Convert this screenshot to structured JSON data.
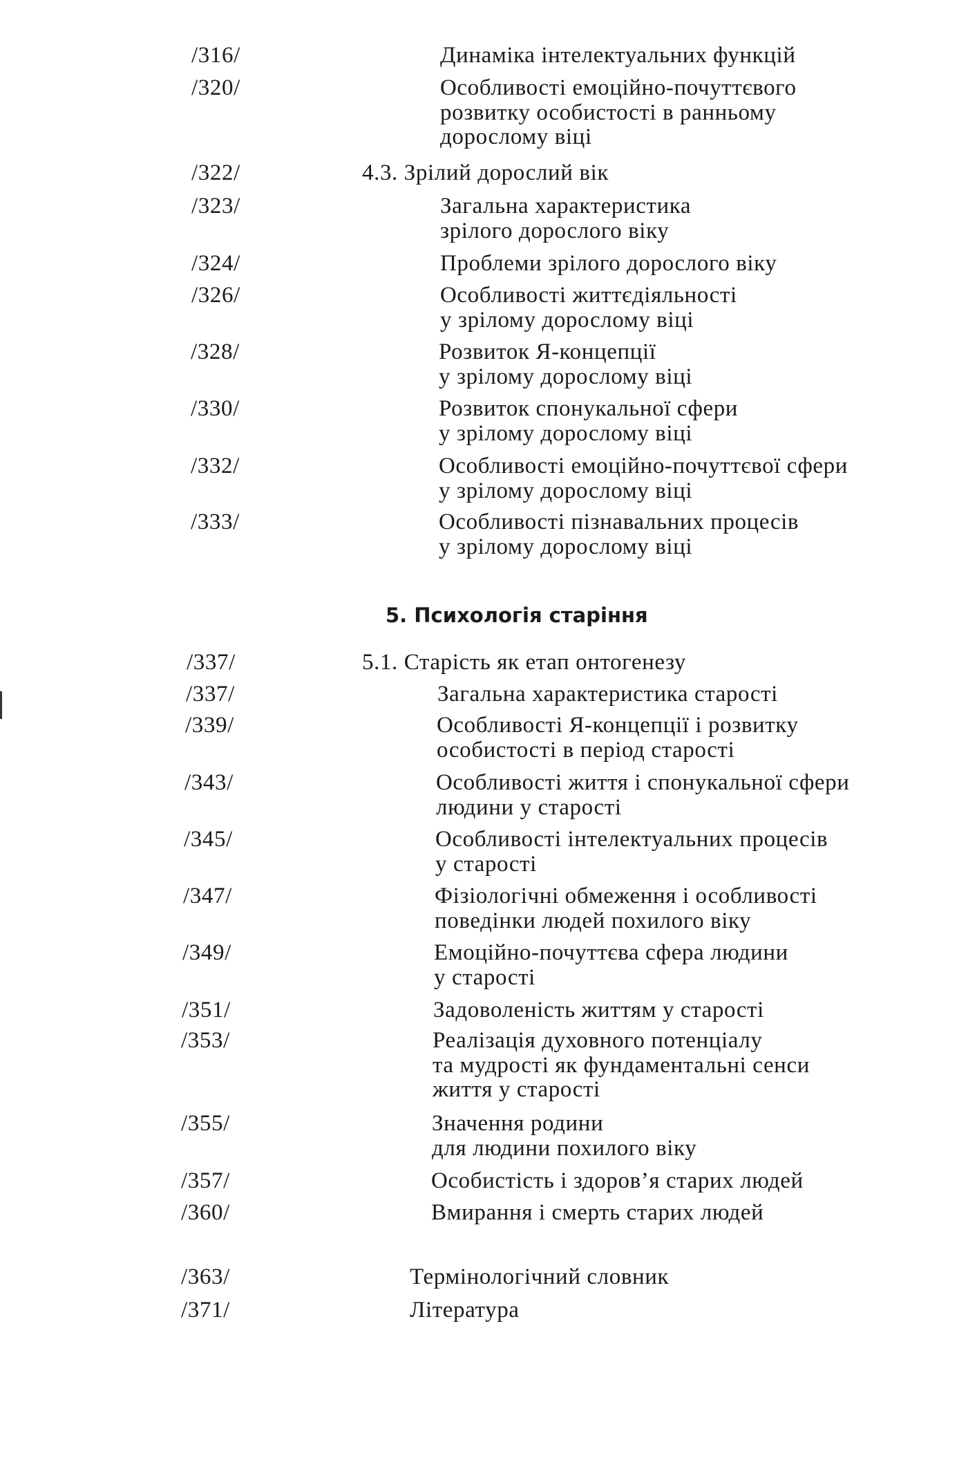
{
  "section5_heading": "5. Психологія старіння",
  "entries": [
    {
      "page": "/316/",
      "lines": [
        "Динаміка інтелектуальних функцій"
      ]
    },
    {
      "page": "/320/",
      "lines": [
        "Особливості емоційно-почуттєвого",
        "розвитку особистості в ранньому",
        "дорослому віці"
      ]
    },
    {
      "page": "/322/",
      "lines": [
        "4.3. Зрілий дорослий вік"
      ],
      "level": "section"
    },
    {
      "page": "/323/",
      "lines": [
        "Загальна характеристика",
        "зрілого дорослого віку"
      ]
    },
    {
      "page": "/324/",
      "lines": [
        "Проблеми зрілого дорослого віку"
      ]
    },
    {
      "page": "/326/",
      "lines": [
        "Особливості життєдіяльності",
        "у зрілому дорослому віці"
      ]
    },
    {
      "page": "/328/",
      "lines": [
        "Розвиток Я-концепції",
        "у зрілому дорослому віці"
      ]
    },
    {
      "page": "/330/",
      "lines": [
        "Розвиток спонукальної сфери",
        "у зрілому дорослому віці"
      ]
    },
    {
      "page": "/332/",
      "lines": [
        "Особливості емоційно-почуттєвої сфери",
        "у зрілому дорослому віці"
      ]
    },
    {
      "page": "/333/",
      "lines": [
        "Особливості пізнавальних процесів",
        "у зрілому дорослому віці"
      ]
    },
    {
      "page": "/337/",
      "lines": [
        "5.1. Старість як етап онтогенезу"
      ],
      "level": "section"
    },
    {
      "page": "/337/",
      "lines": [
        "Загальна характеристика старості"
      ]
    },
    {
      "page": "/339/",
      "lines": [
        "Особливості Я-концепції і розвитку",
        "особистості в період старості"
      ]
    },
    {
      "page": "/343/",
      "lines": [
        "Особливості життя і спонукальної сфери",
        "людини у старості"
      ]
    },
    {
      "page": "/345/",
      "lines": [
        "Особливості інтелектуальних процесів",
        "у старості"
      ]
    },
    {
      "page": "/347/",
      "lines": [
        "Фізіологічні обмеження і особливості",
        "поведінки людей похилого віку"
      ]
    },
    {
      "page": "/349/",
      "lines": [
        "Емоційно-почуттєва сфера людини",
        "у старості"
      ]
    },
    {
      "page": "/351/",
      "lines": [
        "Задоволеність життям у старості"
      ]
    },
    {
      "page": "/353/",
      "lines": [
        "Реалізація духовного потенціалу",
        "та мудрості як фундаментальні сенси",
        "життя у старості"
      ]
    },
    {
      "page": "/355/",
      "lines": [
        "Значення родини",
        "для людини похилого віку"
      ]
    },
    {
      "page": "/357/",
      "lines": [
        "Особистість і здоров’я старих людей"
      ]
    },
    {
      "page": "/360/",
      "lines": [
        "Вмирання і смерть старих людей"
      ]
    },
    {
      "page": "/363/",
      "lines": [
        "Термінологічний словник"
      ],
      "level": "back"
    },
    {
      "page": "/371/",
      "lines": [
        "Література"
      ],
      "level": "back"
    }
  ]
}
